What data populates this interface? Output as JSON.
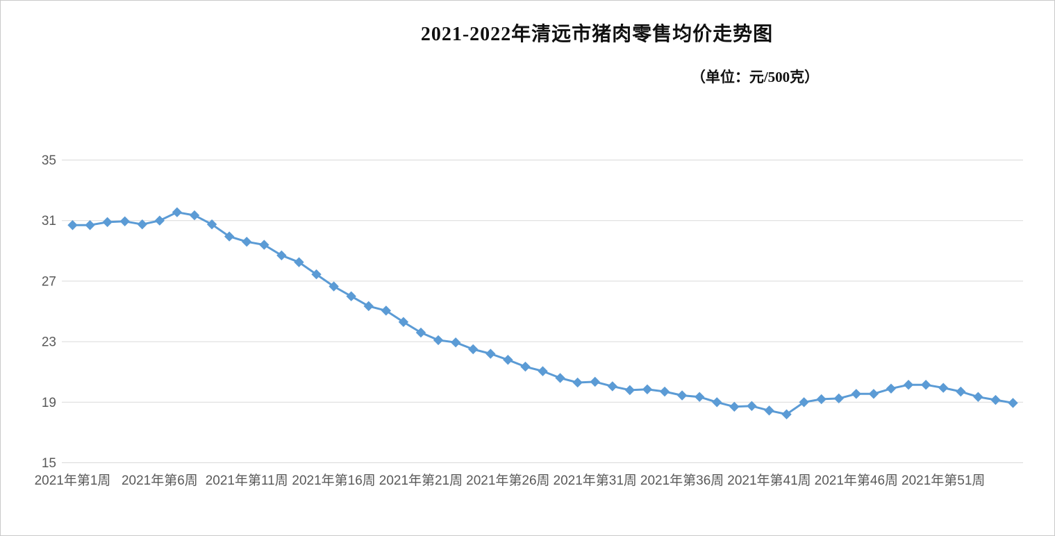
{
  "page": {
    "background": "#ffffff",
    "frame_border_color": "#c9c9c9"
  },
  "chart_data": {
    "type": "line",
    "title": "2021-2022年清远市猪肉零售均价走势图",
    "unit_label": "（单位：元/500克）",
    "xlabel": "",
    "ylabel": "",
    "ylim": [
      15,
      35
    ],
    "yticks": [
      15,
      19,
      23,
      27,
      31,
      35
    ],
    "grid": "horizontal",
    "legend": "none",
    "n_points": 55,
    "x_tick_labels": [
      "2021年第1周",
      "2021年第6周",
      "2021年第11周",
      "2021年第16周",
      "2021年第21周",
      "2021年第26周",
      "2021年第31周",
      "2021年第36周",
      "2021年第41周",
      "2021年第46周",
      "2021年第51周"
    ],
    "x_tick_point_indexes": [
      1,
      6,
      11,
      16,
      21,
      26,
      31,
      36,
      41,
      46,
      51
    ],
    "values": [
      30.7,
      30.7,
      30.9,
      30.95,
      30.75,
      31.0,
      31.55,
      31.35,
      30.75,
      29.95,
      29.6,
      29.4,
      28.7,
      28.25,
      27.45,
      26.65,
      26.0,
      25.35,
      25.05,
      24.3,
      23.6,
      23.1,
      22.95,
      22.5,
      22.2,
      21.8,
      21.35,
      21.05,
      20.6,
      20.3,
      20.35,
      20.05,
      19.8,
      19.85,
      19.7,
      19.45,
      19.35,
      19.0,
      18.7,
      18.75,
      18.45,
      18.2,
      19.0,
      19.2,
      19.25,
      19.55,
      19.55,
      19.9,
      20.15,
      20.15,
      19.95,
      19.7,
      19.35,
      19.15,
      18.95
    ],
    "line_color": "#5B9BD5",
    "marker": "diamond",
    "marker_color": "#5B9BD5",
    "gridline_color": "#D9D9D9",
    "tick_text_color": "#595959"
  }
}
